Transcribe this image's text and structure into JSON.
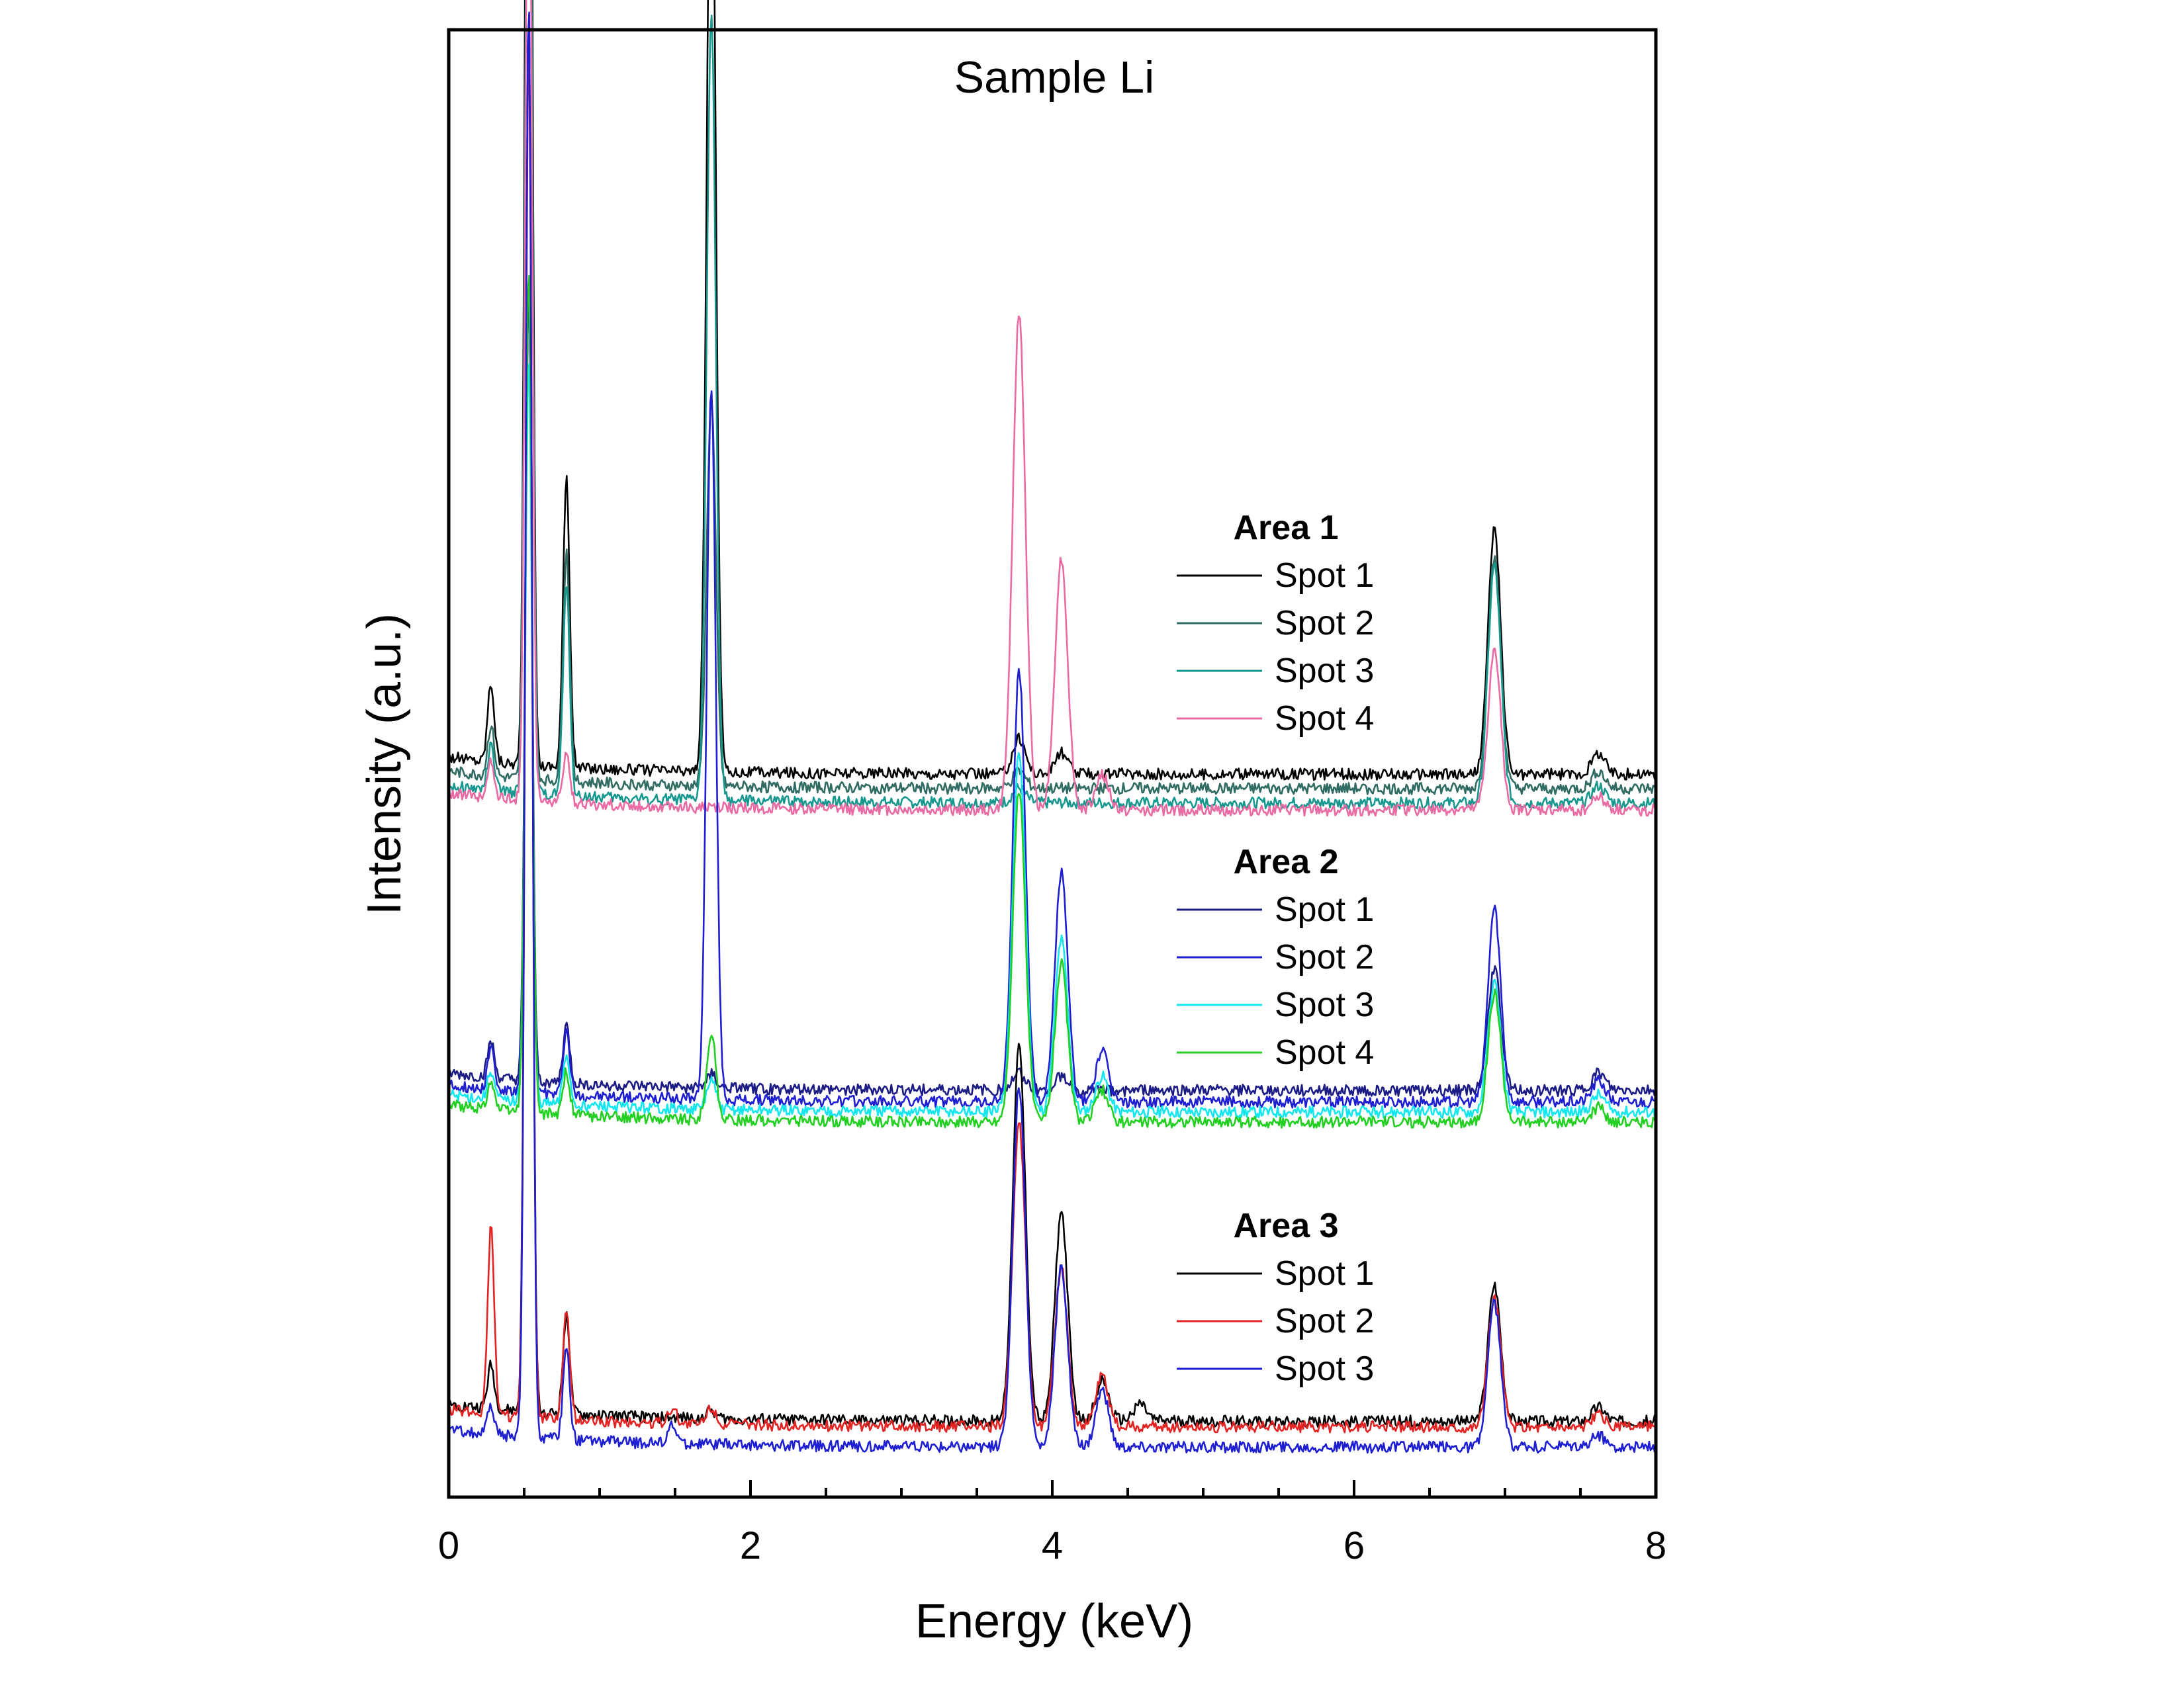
{
  "chart_data": {
    "type": "line",
    "title": "Sample Li",
    "xlabel": "Energy (keV)",
    "ylabel": "Intensity (a.u.)",
    "xlim": [
      0,
      8
    ],
    "x_ticks": [
      0,
      2,
      4,
      6,
      8
    ],
    "x_tick_labels": [
      "0",
      "2",
      "4",
      "6",
      "8"
    ],
    "y_ticks_visible": false,
    "grid": false,
    "groups": [
      {
        "name": "Area 1",
        "legend_position": "upper-right",
        "series": [
          {
            "name": "Spot 1",
            "color": "#000000",
            "baseline": 0.49,
            "peaks": [
              [
                0.28,
                0.055
              ],
              [
                0.53,
                1.0
              ],
              [
                0.78,
                0.2
              ],
              [
                1.74,
                0.7
              ],
              [
                3.78,
                0.025
              ],
              [
                4.06,
                0.015
              ],
              [
                6.93,
                0.17
              ],
              [
                7.62,
                0.015
              ]
            ]
          },
          {
            "name": "Spot 2",
            "color": "#2F6B61",
            "baseline": 0.48,
            "peaks": [
              [
                0.28,
                0.035
              ],
              [
                0.53,
                0.83
              ],
              [
                0.78,
                0.16
              ],
              [
                1.74,
                0.27
              ],
              [
                3.78,
                0.012
              ],
              [
                6.93,
                0.16
              ],
              [
                7.62,
                0.012
              ]
            ]
          },
          {
            "name": "Spot 3",
            "color": "#16988F",
            "baseline": 0.47,
            "peaks": [
              [
                0.28,
                0.03
              ],
              [
                0.53,
                0.83
              ],
              [
                0.78,
                0.145
              ],
              [
                1.74,
                0.55
              ],
              [
                3.78,
                0.01
              ],
              [
                6.93,
                0.165
              ],
              [
                7.62,
                0.012
              ]
            ]
          },
          {
            "name": "Spot 4",
            "color": "#EA6AA3",
            "baseline": 0.465,
            "peaks": [
              [
                0.28,
                0.025
              ],
              [
                0.53,
                0.74
              ],
              [
                0.78,
                0.035
              ],
              [
                3.78,
                0.345
              ],
              [
                4.06,
                0.175
              ],
              [
                4.33,
                0.025
              ],
              [
                6.93,
                0.11
              ],
              [
                7.62,
                0.01
              ]
            ]
          }
        ]
      },
      {
        "name": "Area 2",
        "legend_position": "middle-right",
        "series": [
          {
            "name": "Spot 1",
            "color": "#1B1B86",
            "baseline": 0.27,
            "peaks": [
              [
                0.28,
                0.025
              ],
              [
                0.53,
                0.55
              ],
              [
                0.78,
                0.04
              ],
              [
                1.74,
                0.01
              ],
              [
                3.78,
                0.012
              ],
              [
                4.06,
                0.01
              ],
              [
                6.93,
                0.085
              ],
              [
                7.62,
                0.012
              ]
            ]
          },
          {
            "name": "Spot 2",
            "color": "#1E1ED2",
            "baseline": 0.262,
            "peaks": [
              [
                0.28,
                0.03
              ],
              [
                0.53,
                0.56
              ],
              [
                0.78,
                0.045
              ],
              [
                1.74,
                0.495
              ],
              [
                3.78,
                0.3
              ],
              [
                4.06,
                0.16
              ],
              [
                4.33,
                0.035
              ],
              [
                6.93,
                0.135
              ],
              [
                7.62,
                0.015
              ]
            ]
          },
          {
            "name": "Spot 3",
            "color": "#12E6EE",
            "baseline": 0.255,
            "peaks": [
              [
                0.28,
                0.02
              ],
              [
                0.53,
                0.52
              ],
              [
                0.78,
                0.035
              ],
              [
                1.74,
                0.02
              ],
              [
                3.78,
                0.25
              ],
              [
                4.06,
                0.12
              ],
              [
                4.33,
                0.025
              ],
              [
                6.93,
                0.09
              ],
              [
                7.62,
                0.012
              ]
            ]
          },
          {
            "name": "Spot 4",
            "color": "#22D022",
            "baseline": 0.248,
            "peaks": [
              [
                0.28,
                0.02
              ],
              [
                0.53,
                0.59
              ],
              [
                0.78,
                0.03
              ],
              [
                1.74,
                0.06
              ],
              [
                3.78,
                0.23
              ],
              [
                4.06,
                0.11
              ],
              [
                4.33,
                0.022
              ],
              [
                6.93,
                0.09
              ],
              [
                7.62,
                0.01
              ]
            ]
          }
        ]
      },
      {
        "name": "Area 3",
        "legend_position": "lower-right",
        "series": [
          {
            "name": "Spot 1",
            "color": "#000000",
            "baseline": 0.04,
            "peaks": [
              [
                0.28,
                0.03
              ],
              [
                0.53,
                0.98
              ],
              [
                0.78,
                0.07
              ],
              [
                1.74,
                0.006
              ],
              [
                3.78,
                0.26
              ],
              [
                4.06,
                0.145
              ],
              [
                4.33,
                0.028
              ],
              [
                4.58,
                0.012
              ],
              [
                6.93,
                0.095
              ],
              [
                7.62,
                0.01
              ]
            ]
          },
          {
            "name": "Spot 2",
            "color": "#E32222",
            "baseline": 0.036,
            "peaks": [
              [
                0.28,
                0.13
              ],
              [
                0.53,
                0.96
              ],
              [
                0.78,
                0.075
              ],
              [
                1.48,
                0.01
              ],
              [
                1.74,
                0.012
              ],
              [
                3.78,
                0.21
              ],
              [
                4.06,
                0.11
              ],
              [
                4.33,
                0.035
              ],
              [
                6.93,
                0.09
              ],
              [
                7.62,
                0.008
              ]
            ]
          },
          {
            "name": "Spot 3",
            "color": "#1E1ED2",
            "baseline": 0.022,
            "peaks": [
              [
                0.28,
                0.02
              ],
              [
                0.53,
                1.0
              ],
              [
                0.78,
                0.065
              ],
              [
                1.48,
                0.012
              ],
              [
                3.78,
                0.25
              ],
              [
                4.06,
                0.125
              ],
              [
                4.33,
                0.04
              ],
              [
                6.93,
                0.1
              ],
              [
                7.62,
                0.008
              ]
            ]
          }
        ]
      }
    ]
  }
}
